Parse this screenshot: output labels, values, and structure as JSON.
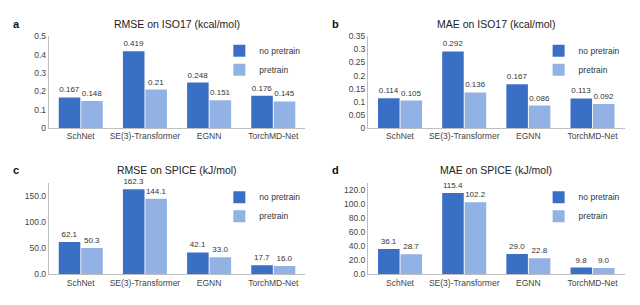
{
  "chart_data": [
    {
      "type": "bar",
      "title": "RMSE on ISO17 (kcal/mol)",
      "annotations": [
        "a"
      ],
      "categories": [
        "SchNet",
        "SE(3)-Transformer",
        "EGNN",
        "TorchMD-Net"
      ],
      "series": [
        {
          "name": "no pretrain",
          "color": "#3b6fc6",
          "values": [
            0.167,
            0.419,
            0.248,
            0.176
          ]
        },
        {
          "name": "pretrain",
          "color": "#92b1e4",
          "values": [
            0.148,
            0.21,
            0.151,
            0.145
          ]
        }
      ],
      "ylim": [
        0,
        0.5
      ],
      "yticks": [
        0,
        0.1,
        0.2,
        0.3,
        0.4,
        0.5
      ],
      "grid": false,
      "legend": "top right",
      "data_labels": true
    },
    {
      "type": "bar",
      "title": "MAE on ISO17 (kcal/mol)",
      "annotations": [
        "b"
      ],
      "categories": [
        "SchNet",
        "SE(3)-Transformer",
        "EGNN",
        "TorchMD-Net"
      ],
      "series": [
        {
          "name": "no pretrain",
          "color": "#3b6fc6",
          "values": [
            0.114,
            0.292,
            0.167,
            0.113
          ]
        },
        {
          "name": "pretrain",
          "color": "#92b1e4",
          "values": [
            0.105,
            0.136,
            0.086,
            0.092
          ]
        }
      ],
      "ylim": [
        0,
        0.35
      ],
      "yticks": [
        0,
        0.05,
        0.1,
        0.15,
        0.2,
        0.25,
        0.3,
        0.35
      ],
      "grid": false,
      "legend": "top right",
      "data_labels": true
    },
    {
      "type": "bar",
      "title": "RMSE on SPICE (kJ/mol)",
      "annotations": [
        "c"
      ],
      "categories": [
        "SchNet",
        "SE(3)-Transformer",
        "EGNN",
        "TorchMD-Net"
      ],
      "series": [
        {
          "name": "no pretrain",
          "color": "#3b6fc6",
          "values": [
            62.1,
            162.3,
            42.1,
            17.7
          ],
          "value_labels": [
            "62.1",
            "162.3",
            "42.1",
            "17.7"
          ]
        },
        {
          "name": "pretrain",
          "color": "#92b1e4",
          "values": [
            50.3,
            144.1,
            33.0,
            16.0
          ],
          "value_labels": [
            "50.3",
            "144.1",
            "33.0",
            "16.0"
          ]
        }
      ],
      "ylim": [
        0,
        175
      ],
      "yticks": [
        {
          "value": 0,
          "label": "0.0"
        },
        {
          "value": 50,
          "label": "50.0"
        },
        {
          "value": 100,
          "label": "100.0"
        },
        {
          "value": 150,
          "label": "150.0"
        }
      ],
      "grid": false,
      "legend": "top right",
      "data_labels": true
    },
    {
      "type": "bar",
      "title": "MAE on SPICE (kJ/mol)",
      "annotations": [
        "d"
      ],
      "categories": [
        "SchNet",
        "SE(3)-Transformer",
        "EGNN",
        "TorchMD-Net"
      ],
      "series": [
        {
          "name": "no pretrain",
          "color": "#3b6fc6",
          "values": [
            36.1,
            115.4,
            29.0,
            9.8
          ],
          "value_labels": [
            "36.1",
            "115.4",
            "29.0",
            "9.8"
          ]
        },
        {
          "name": "pretrain",
          "color": "#92b1e4",
          "values": [
            28.7,
            102.2,
            22.8,
            9.0
          ],
          "value_labels": [
            "28.7",
            "102.2",
            "22.8",
            "9.0"
          ]
        }
      ],
      "ylim": [
        0,
        130
      ],
      "yticks": [
        {
          "value": 0,
          "label": "0.0"
        },
        {
          "value": 20,
          "label": "20.0"
        },
        {
          "value": 40,
          "label": "40.0"
        },
        {
          "value": 60,
          "label": "60.0"
        },
        {
          "value": 80,
          "label": "80.0"
        },
        {
          "value": 100,
          "label": "100.0"
        },
        {
          "value": 120,
          "label": "120.0"
        }
      ],
      "grid": false,
      "legend": "top right",
      "data_labels": true
    }
  ]
}
